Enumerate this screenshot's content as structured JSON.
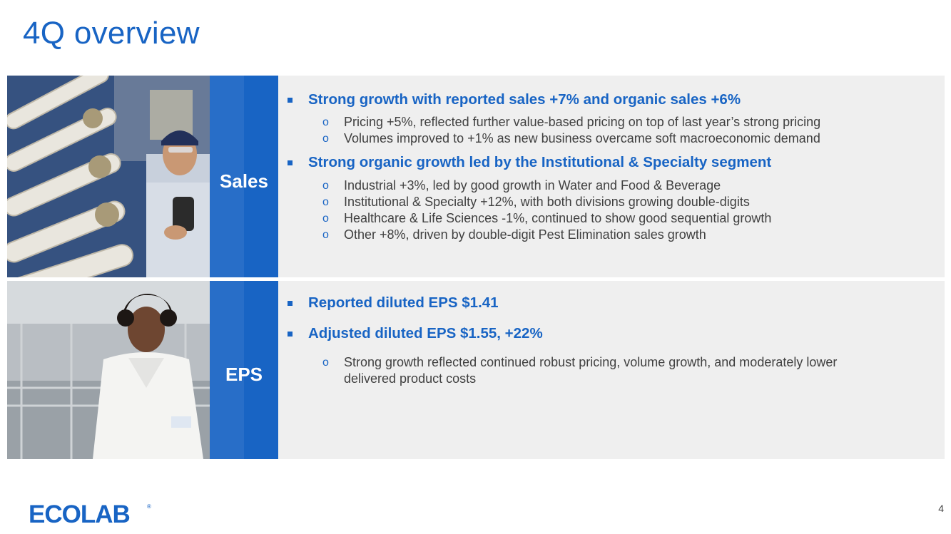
{
  "slide": {
    "title": "4Q overview",
    "page_number": "4"
  },
  "sales": {
    "label": "Sales",
    "bullets": [
      {
        "text": "Strong growth with reported sales +7% and organic sales +6%",
        "subs": [
          "Pricing +5%, reflected further value-based pricing on top of last year’s strong pricing",
          "Volumes improved to +1% as new business overcame soft macroeconomic demand"
        ]
      },
      {
        "text": "Strong organic growth led by the Institutional & Specialty segment",
        "subs": [
          "Industrial +3%, led by good growth in Water and Food & Beverage",
          "Institutional & Specialty +12%, with both divisions growing double-digits",
          "Healthcare & Life Sciences -1%, continued to show good sequential growth",
          "Other +8%, driven by double-digit Pest Elimination sales growth"
        ]
      }
    ]
  },
  "eps": {
    "label": "EPS",
    "bullets": [
      {
        "text": "Reported diluted EPS $1.41",
        "subs": []
      },
      {
        "text": "Adjusted diluted EPS $1.55, +22%",
        "subs": [
          "Strong growth reflected continued robust pricing, volume growth, and moderately lower delivered product costs"
        ]
      }
    ]
  },
  "logo": {
    "text": "ECOLAB",
    "color": "#1864c4"
  },
  "colors": {
    "accent": "#1864c4",
    "panel": "#efefef",
    "body_text": "#404040"
  }
}
